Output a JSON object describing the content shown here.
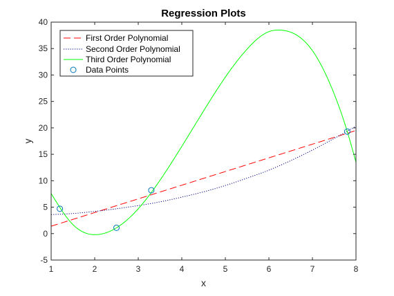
{
  "chart_data": {
    "type": "line",
    "title": "Regression Plots",
    "xlabel": "x",
    "ylabel": "y",
    "xlim": [
      1,
      8
    ],
    "ylim": [
      -5,
      40
    ],
    "xticks": [
      1,
      2,
      3,
      4,
      5,
      6,
      7,
      8
    ],
    "yticks": [
      -5,
      0,
      5,
      10,
      15,
      20,
      25,
      30,
      35,
      40
    ],
    "xtick_labels": [
      "1",
      "2",
      "3",
      "4",
      "5",
      "6",
      "7",
      "8"
    ],
    "ytick_labels": [
      "-5",
      "0",
      "5",
      "10",
      "15",
      "20",
      "25",
      "30",
      "35",
      "40"
    ],
    "grid": false,
    "legend_position": "top-left",
    "legend": [
      "First Order Polynomial",
      "Second Order Polynomial",
      "Third Order Polynomial",
      "Data Points"
    ],
    "series": [
      {
        "name": "First Order Polynomial",
        "style": "dashed",
        "color": "#ff0000",
        "x": [
          1,
          8
        ],
        "y": [
          1.4,
          19.5
        ]
      },
      {
        "name": "Second Order Polynomial",
        "style": "dotted",
        "color": "#000080",
        "x": [
          1,
          1.5,
          2,
          2.5,
          3,
          3.5,
          4,
          4.5,
          5,
          5.5,
          6,
          6.5,
          7,
          7.5,
          8
        ],
        "y": [
          3.6,
          3.8,
          4.2,
          4.7,
          5.3,
          6.0,
          6.9,
          7.9,
          9.1,
          10.5,
          12.0,
          13.8,
          15.8,
          18.0,
          20.3
        ]
      },
      {
        "name": "Third Order Polynomial",
        "style": "solid",
        "color": "#00ff00",
        "x": [
          1,
          1.5,
          2,
          2.5,
          3,
          3.5,
          4,
          4.5,
          5,
          5.5,
          6,
          6.25,
          6.5,
          7,
          7.5,
          7.8,
          8
        ],
        "y": [
          7.6,
          1.7,
          -0.2,
          1.1,
          4.7,
          10.1,
          16.5,
          23.2,
          29.6,
          34.9,
          38.2,
          38.5,
          38.1,
          34.6,
          26.4,
          19.3,
          13.5
        ]
      },
      {
        "name": "Data Points",
        "style": "markers",
        "marker": "circle",
        "color": "#0072bd",
        "x": [
          1.2,
          2.5,
          3.3,
          7.8
        ],
        "y": [
          4.7,
          1.1,
          8.2,
          19.3
        ]
      }
    ]
  }
}
